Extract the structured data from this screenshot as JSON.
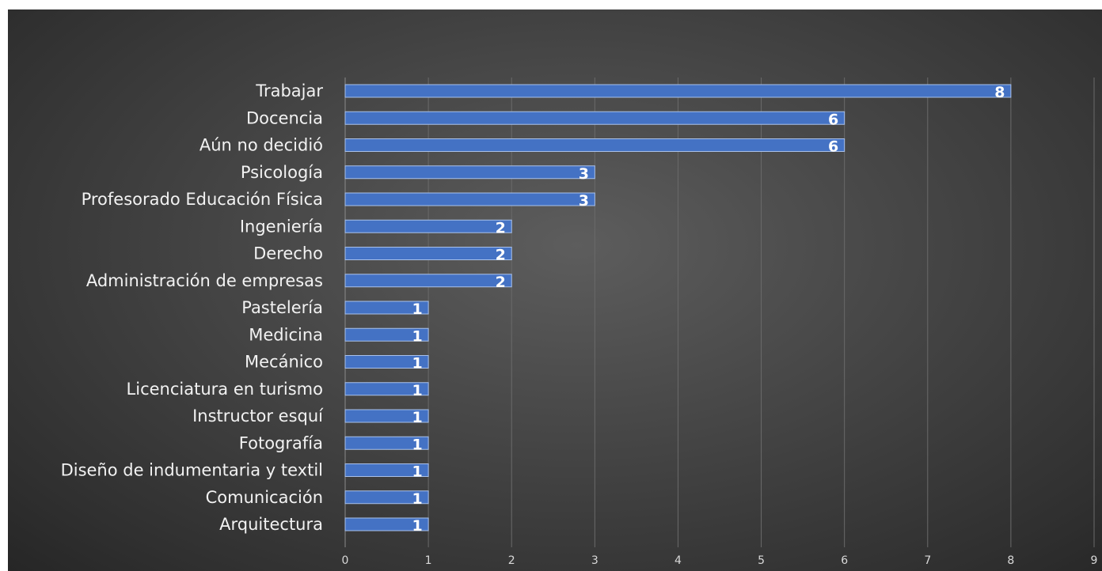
{
  "chart_data": {
    "type": "bar",
    "orientation": "horizontal",
    "title": "",
    "xlabel": "",
    "ylabel": "",
    "categories": [
      "Trabajar",
      "Docencia",
      "Aún no decidió",
      "Psicología",
      "Profesorado Educación Física",
      "Ingeniería",
      "Derecho",
      "Administración de empresas",
      "Pastelería",
      "Medicina",
      "Mecánico",
      "Licenciatura en turismo",
      "Instructor esquí",
      "Fotografía",
      "Diseño de indumentaria y textil",
      "Comunicación",
      "Arquitectura"
    ],
    "values": [
      8,
      6,
      6,
      3,
      3,
      2,
      2,
      2,
      1,
      1,
      1,
      1,
      1,
      1,
      1,
      1,
      1
    ],
    "xlim": [
      0,
      9
    ],
    "xticks": [
      0,
      1,
      2,
      3,
      4,
      5,
      6,
      7,
      8,
      9
    ],
    "grid": "vertical",
    "legend": "none",
    "data_labels": true,
    "colors": {
      "bar": "#4472c4",
      "background": "#3a3a3a",
      "gridline": "#6a6a6a",
      "text": "#f2f2f2"
    }
  }
}
